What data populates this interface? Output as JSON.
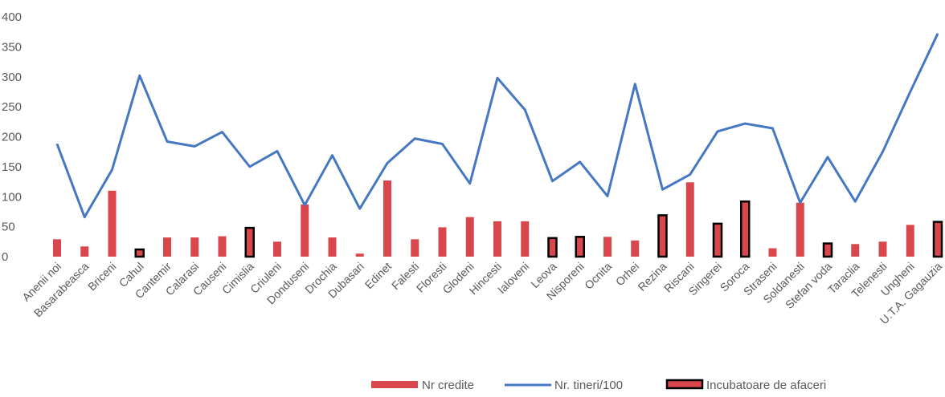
{
  "chart_data": {
    "type": "bar",
    "title": "",
    "xlabel": "",
    "ylabel": "",
    "ylim": [
      0,
      400
    ],
    "yticks": [
      0,
      50,
      100,
      150,
      200,
      250,
      300,
      350,
      400
    ],
    "grid": false,
    "legend_position": "bottom",
    "categories": [
      "Anenii noi",
      "Basarabeasca",
      "Briceni",
      "Cahul",
      "Cantemir",
      "Calarasi",
      "Causeni",
      "Cimislia",
      "Criuleni",
      "Donduseni",
      "Drochia",
      "Dubasari",
      "Edinet",
      "Falesti",
      "Floresti",
      "Glodeni",
      "Hincesti",
      "Ialoveni",
      "Leova",
      "Nisporeni",
      "Ocnita",
      "Orhei",
      "Rezina",
      "Riscani",
      "Singerei",
      "Soroca",
      "Straseni",
      "Soldanesti",
      "Stefan voda",
      "Taraclia",
      "Telenesti",
      "Ungheni",
      "U.T.A. Gagauzia"
    ],
    "series": [
      {
        "name": "Nr credite",
        "kind": "bar",
        "color": "#d9464c",
        "values": [
          29,
          17,
          110,
          12,
          32,
          32,
          34,
          48,
          25,
          87,
          32,
          5,
          127,
          29,
          49,
          66,
          59,
          59,
          31,
          33,
          33,
          27,
          69,
          124,
          55,
          92,
          14,
          90,
          22,
          21,
          25,
          53,
          58
        ]
      },
      {
        "name": "Nr. tineri/100",
        "kind": "line",
        "color": "#4577c3",
        "values": [
          188,
          66,
          145,
          302,
          192,
          184,
          208,
          150,
          176,
          86,
          169,
          80,
          156,
          197,
          188,
          122,
          298,
          245,
          126,
          158,
          101,
          288,
          112,
          137,
          209,
          222,
          214,
          90,
          166,
          92,
          175,
          275,
          372
        ]
      },
      {
        "name": "Incubatoare de afaceri",
        "kind": "outline",
        "color": "#000000",
        "values": [
          0,
          0,
          0,
          12,
          0,
          0,
          0,
          48,
          0,
          0,
          0,
          0,
          0,
          0,
          0,
          0,
          0,
          0,
          31,
          33,
          0,
          0,
          69,
          0,
          55,
          92,
          0,
          0,
          22,
          0,
          0,
          0,
          58
        ]
      }
    ]
  }
}
